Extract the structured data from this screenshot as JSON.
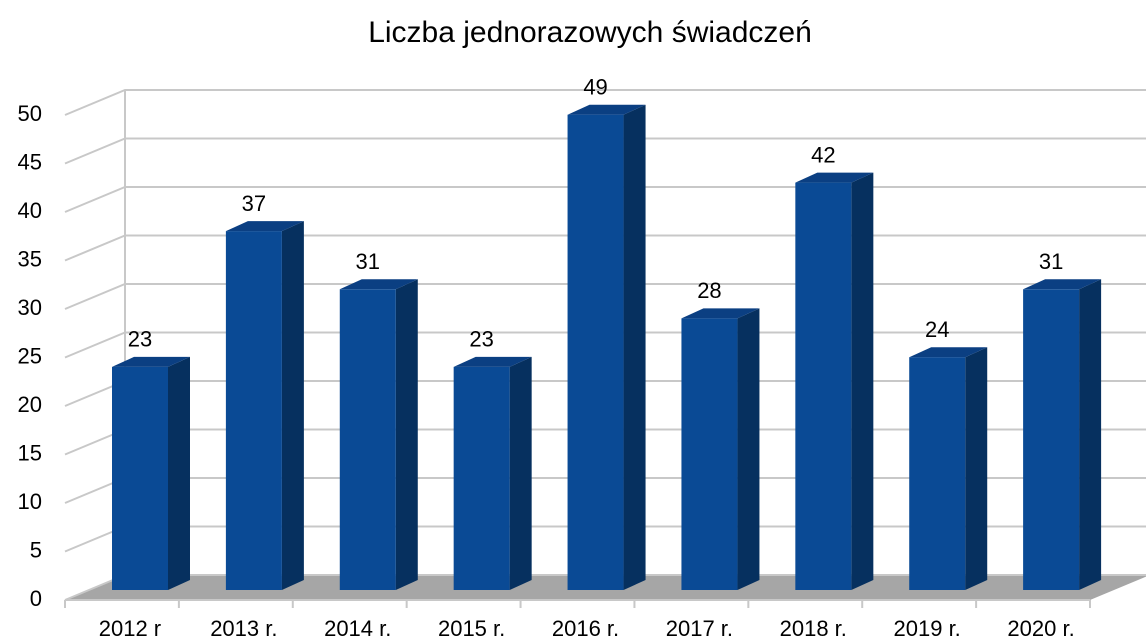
{
  "chart_data": {
    "type": "bar3d",
    "title": "Liczba jednorazowych świadczeń",
    "categories": [
      "2012 r",
      "2013 r.",
      "2014 r.",
      "2015 r.",
      "2016 r.",
      "2017 r.",
      "2018 r.",
      "2019 r.",
      "2020 r."
    ],
    "values": [
      23,
      37,
      31,
      23,
      49,
      28,
      42,
      24,
      31
    ],
    "color": "#0a4a95",
    "ylim": [
      0,
      50
    ],
    "yticks": [
      0,
      5,
      10,
      15,
      20,
      25,
      30,
      35,
      40,
      45,
      50
    ],
    "grid": true
  }
}
